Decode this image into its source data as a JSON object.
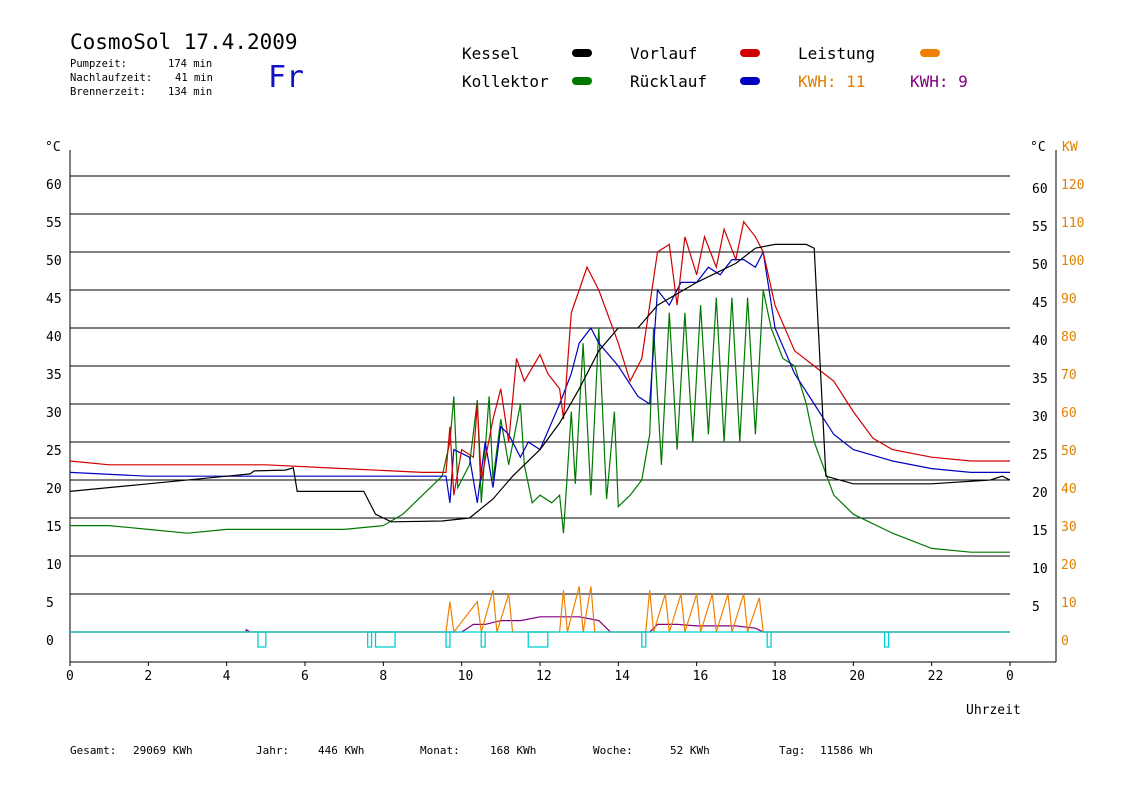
{
  "header": {
    "title": "CosmoSol 17.4.2009",
    "pump_label": "Pumpzeit:",
    "pump_value": "174 min",
    "afterrun_label": "Nachlaufzeit:",
    "afterrun_value": "41 min",
    "burner_label": "Brennerzeit:",
    "burner_value": "134 min",
    "weekday": "Fr"
  },
  "legend": {
    "kessel": "Kessel",
    "kollektor": "Kollektor",
    "vorlauf": "Vorlauf",
    "ruecklauf": "Rücklauf",
    "leistung": "Leistung",
    "kwh1": "KWH: 11",
    "kwh2": "KWH: 9"
  },
  "colors": {
    "kessel": "#000000",
    "kollektor": "#007800",
    "vorlauf": "#d00000",
    "ruecklauf": "#0000c0",
    "leistung": "#f08000",
    "leistung2": "#800080",
    "pump": "#00d0d0"
  },
  "footer": {
    "gesamt_label": "Gesamt:",
    "gesamt_value": "29069 KWh",
    "jahr_label": "Jahr:",
    "jahr_value": "446 KWh",
    "monat_label": "Monat:",
    "monat_value": "168 KWh",
    "woche_label": "Woche:",
    "woche_value": "52 KWh",
    "tag_label": "Tag:",
    "tag_value": "11586 Wh"
  },
  "chart_data": {
    "type": "line",
    "xlabel": "Uhrzeit",
    "ylabel_left": "°C",
    "ylabel_right": "°C",
    "ylabel_right2": "KW",
    "x_ticks": [
      "0",
      "2",
      "4",
      "6",
      "8",
      "10",
      "12",
      "14",
      "16",
      "18",
      "20",
      "22",
      "0"
    ],
    "xlim": [
      0,
      24
    ],
    "ylim": [
      0,
      60
    ],
    "y_ticks_left": [
      "0",
      "5",
      "10",
      "15",
      "20",
      "25",
      "30",
      "35",
      "40",
      "45",
      "50",
      "55",
      "60"
    ],
    "y_ticks_right": [
      "5",
      "10",
      "15",
      "20",
      "25",
      "30",
      "35",
      "40",
      "45",
      "50",
      "55",
      "60"
    ],
    "y_ticks_kw": [
      "0",
      "10",
      "20",
      "30",
      "40",
      "50",
      "60",
      "70",
      "80",
      "90",
      "100",
      "110",
      "120"
    ],
    "series": [
      {
        "name": "Kessel",
        "key": "kessel",
        "points": [
          [
            0,
            18.5
          ],
          [
            2,
            19.5
          ],
          [
            4,
            20.5
          ],
          [
            4.6,
            20.8
          ],
          [
            4.7,
            21.2
          ],
          [
            5.5,
            21.3
          ],
          [
            5.7,
            21.6
          ],
          [
            5.8,
            18.5
          ],
          [
            7.5,
            18.5
          ],
          [
            7.8,
            15.5
          ],
          [
            8.2,
            14.5
          ],
          [
            9.5,
            14.6
          ],
          [
            10.2,
            15
          ],
          [
            10.8,
            17.5
          ],
          [
            11.3,
            20.5
          ],
          [
            11.6,
            22
          ],
          [
            12,
            24
          ],
          [
            12.5,
            27.5
          ],
          [
            13,
            32
          ],
          [
            13.5,
            37
          ],
          [
            14,
            40
          ],
          [
            14.5,
            40
          ],
          [
            15,
            43
          ],
          [
            16,
            46
          ],
          [
            17,
            48.5
          ],
          [
            17.5,
            50.5
          ],
          [
            18,
            51
          ],
          [
            18.8,
            51
          ],
          [
            19,
            50.5
          ],
          [
            19.3,
            20.5
          ],
          [
            20,
            19.5
          ],
          [
            22,
            19.5
          ],
          [
            23.5,
            20
          ],
          [
            23.8,
            20.5
          ],
          [
            24,
            20
          ]
        ]
      },
      {
        "name": "Kollektor",
        "key": "kollektor",
        "points": [
          [
            0,
            14
          ],
          [
            1,
            14
          ],
          [
            2,
            13.5
          ],
          [
            3,
            13
          ],
          [
            4,
            13.5
          ],
          [
            5,
            13.5
          ],
          [
            6,
            13.5
          ],
          [
            7,
            13.5
          ],
          [
            8,
            14
          ],
          [
            8.5,
            15.5
          ],
          [
            9,
            18
          ],
          [
            9.5,
            20.5
          ],
          [
            9.7,
            25
          ],
          [
            9.8,
            31
          ],
          [
            9.9,
            19
          ],
          [
            10.2,
            22
          ],
          [
            10.4,
            30.5
          ],
          [
            10.5,
            17
          ],
          [
            10.7,
            31
          ],
          [
            10.8,
            20
          ],
          [
            11,
            28
          ],
          [
            11.2,
            22
          ],
          [
            11.5,
            30
          ],
          [
            11.6,
            22
          ],
          [
            11.8,
            17
          ],
          [
            12,
            18
          ],
          [
            12.3,
            17
          ],
          [
            12.5,
            18
          ],
          [
            12.6,
            13
          ],
          [
            12.8,
            29
          ],
          [
            12.9,
            19.5
          ],
          [
            13.1,
            38
          ],
          [
            13.3,
            18
          ],
          [
            13.5,
            40
          ],
          [
            13.7,
            17.5
          ],
          [
            13.9,
            29
          ],
          [
            14,
            16.5
          ],
          [
            14.3,
            18
          ],
          [
            14.6,
            20
          ],
          [
            14.8,
            26
          ],
          [
            14.9,
            40
          ],
          [
            15.1,
            22
          ],
          [
            15.3,
            42
          ],
          [
            15.5,
            24
          ],
          [
            15.7,
            42
          ],
          [
            15.9,
            25
          ],
          [
            16.1,
            43
          ],
          [
            16.3,
            26
          ],
          [
            16.5,
            44
          ],
          [
            16.7,
            25
          ],
          [
            16.9,
            44
          ],
          [
            17.1,
            25
          ],
          [
            17.3,
            44
          ],
          [
            17.5,
            26
          ],
          [
            17.7,
            45
          ],
          [
            17.9,
            40
          ],
          [
            18.2,
            36
          ],
          [
            18.5,
            35
          ],
          [
            18.8,
            30
          ],
          [
            19,
            25
          ],
          [
            19.5,
            18
          ],
          [
            20,
            15.5
          ],
          [
            21,
            13
          ],
          [
            22,
            11
          ],
          [
            23,
            10.5
          ],
          [
            24,
            10.5
          ]
        ]
      },
      {
        "name": "Vorlauf",
        "key": "vorlauf",
        "points": [
          [
            0,
            22.5
          ],
          [
            1,
            22
          ],
          [
            3,
            22
          ],
          [
            5,
            22
          ],
          [
            7,
            21.5
          ],
          [
            9,
            21
          ],
          [
            9.6,
            21
          ],
          [
            9.7,
            27
          ],
          [
            9.8,
            18
          ],
          [
            10,
            24
          ],
          [
            10.3,
            23
          ],
          [
            10.4,
            30
          ],
          [
            10.5,
            20
          ],
          [
            10.8,
            28
          ],
          [
            11,
            32
          ],
          [
            11.2,
            25
          ],
          [
            11.4,
            36
          ],
          [
            11.6,
            33
          ],
          [
            12,
            36.5
          ],
          [
            12.2,
            34
          ],
          [
            12.5,
            32
          ],
          [
            12.6,
            28
          ],
          [
            12.8,
            42
          ],
          [
            13,
            45
          ],
          [
            13.2,
            48
          ],
          [
            13.5,
            45
          ],
          [
            14,
            38
          ],
          [
            14.3,
            33
          ],
          [
            14.6,
            36
          ],
          [
            14.8,
            43
          ],
          [
            15,
            50
          ],
          [
            15.3,
            51
          ],
          [
            15.5,
            43
          ],
          [
            15.7,
            52
          ],
          [
            16,
            47
          ],
          [
            16.2,
            52
          ],
          [
            16.5,
            48
          ],
          [
            16.7,
            53
          ],
          [
            17,
            49
          ],
          [
            17.2,
            54
          ],
          [
            17.5,
            52
          ],
          [
            17.7,
            50
          ],
          [
            18,
            43
          ],
          [
            18.5,
            37
          ],
          [
            19,
            35
          ],
          [
            19.5,
            33
          ],
          [
            20,
            29
          ],
          [
            20.5,
            25.5
          ],
          [
            21,
            24
          ],
          [
            22,
            23
          ],
          [
            23,
            22.5
          ],
          [
            24,
            22.5
          ]
        ]
      },
      {
        "name": "Rücklauf",
        "key": "ruecklauf",
        "points": [
          [
            0,
            21
          ],
          [
            2,
            20.5
          ],
          [
            4,
            20.5
          ],
          [
            6,
            20.5
          ],
          [
            8,
            20.5
          ],
          [
            9.6,
            20.5
          ],
          [
            9.7,
            17
          ],
          [
            9.8,
            24
          ],
          [
            10.2,
            23
          ],
          [
            10.4,
            17
          ],
          [
            10.6,
            25
          ],
          [
            10.8,
            19
          ],
          [
            11,
            27
          ],
          [
            11.2,
            26
          ],
          [
            11.5,
            23
          ],
          [
            11.7,
            25
          ],
          [
            12,
            24
          ],
          [
            12.5,
            30
          ],
          [
            12.8,
            34
          ],
          [
            13,
            38
          ],
          [
            13.3,
            40
          ],
          [
            13.5,
            38
          ],
          [
            14,
            35
          ],
          [
            14.5,
            31
          ],
          [
            14.8,
            30
          ],
          [
            15,
            45
          ],
          [
            15.3,
            43
          ],
          [
            15.6,
            46
          ],
          [
            16,
            46
          ],
          [
            16.3,
            48
          ],
          [
            16.6,
            47
          ],
          [
            16.9,
            49
          ],
          [
            17.2,
            49
          ],
          [
            17.5,
            48
          ],
          [
            17.7,
            50
          ],
          [
            18,
            40
          ],
          [
            18.5,
            34
          ],
          [
            19,
            30
          ],
          [
            19.5,
            26
          ],
          [
            20,
            24
          ],
          [
            21,
            22.5
          ],
          [
            22,
            21.5
          ],
          [
            23,
            21
          ],
          [
            24,
            21
          ]
        ]
      },
      {
        "name": "Leistung",
        "key": "leistung",
        "points": [
          [
            0,
            0
          ],
          [
            9.6,
            0
          ],
          [
            9.7,
            4
          ],
          [
            9.8,
            0
          ],
          [
            10.4,
            4
          ],
          [
            10.5,
            0
          ],
          [
            10.8,
            5.5
          ],
          [
            10.9,
            0
          ],
          [
            11.2,
            5
          ],
          [
            11.3,
            0
          ],
          [
            12.5,
            0
          ],
          [
            12.6,
            5.5
          ],
          [
            12.7,
            0
          ],
          [
            13,
            6
          ],
          [
            13.1,
            0
          ],
          [
            13.3,
            6
          ],
          [
            13.4,
            0
          ],
          [
            14.7,
            0
          ],
          [
            14.8,
            5.5
          ],
          [
            14.9,
            0
          ],
          [
            15.2,
            5
          ],
          [
            15.3,
            0
          ],
          [
            15.6,
            5
          ],
          [
            15.7,
            0
          ],
          [
            16,
            5
          ],
          [
            16.1,
            0
          ],
          [
            16.4,
            5
          ],
          [
            16.5,
            0
          ],
          [
            16.8,
            5
          ],
          [
            16.9,
            0
          ],
          [
            17.2,
            5
          ],
          [
            17.3,
            0
          ],
          [
            17.6,
            4.5
          ],
          [
            17.7,
            0
          ],
          [
            24,
            0
          ]
        ]
      },
      {
        "name": "Leistung2",
        "key": "leistung2",
        "points": [
          [
            0,
            0
          ],
          [
            4.5,
            0
          ],
          [
            4.5,
            0.3
          ],
          [
            4.6,
            0
          ],
          [
            10,
            0
          ],
          [
            10.3,
            1
          ],
          [
            10.6,
            1
          ],
          [
            11,
            1.5
          ],
          [
            11.5,
            1.5
          ],
          [
            12,
            2
          ],
          [
            12.5,
            2
          ],
          [
            13,
            2
          ],
          [
            13.5,
            1.5
          ],
          [
            13.8,
            0
          ],
          [
            14.8,
            0
          ],
          [
            15,
            1
          ],
          [
            15.5,
            1
          ],
          [
            16,
            0.8
          ],
          [
            16.5,
            0.8
          ],
          [
            17,
            0.8
          ],
          [
            17.5,
            0.5
          ],
          [
            17.7,
            0
          ],
          [
            24,
            0
          ]
        ]
      }
    ],
    "pump_intervals": [
      [
        4.8,
        5.0
      ],
      [
        7.6,
        7.7
      ],
      [
        7.8,
        8.3
      ],
      [
        9.6,
        9.7
      ],
      [
        10.5,
        10.6
      ],
      [
        11.7,
        12.2
      ],
      [
        14.6,
        14.7
      ],
      [
        17.8,
        17.9
      ],
      [
        20.8,
        20.9
      ]
    ]
  }
}
